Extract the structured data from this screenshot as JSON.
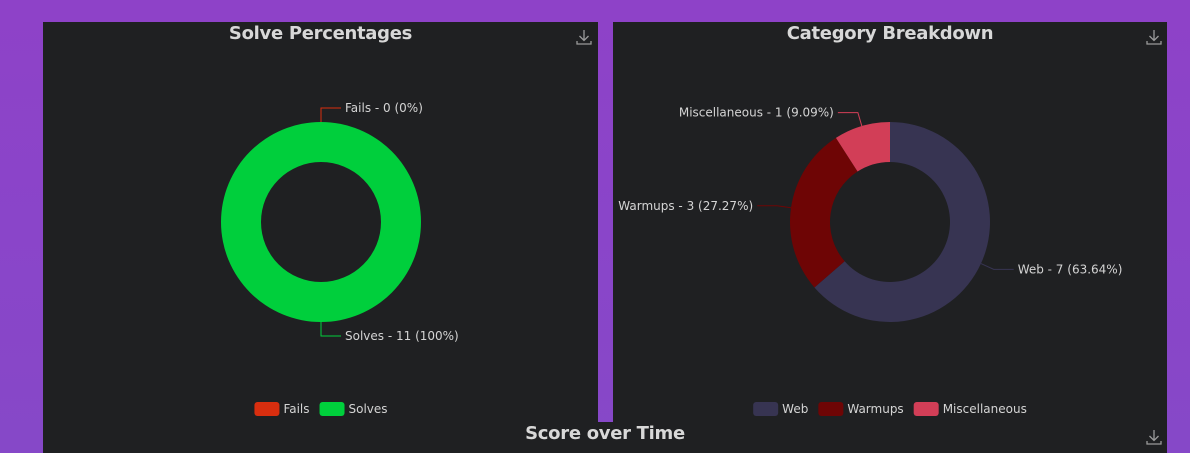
{
  "chart_data": [
    {
      "type": "pie",
      "variant": "donut",
      "title": "Solve Percentages",
      "slices": [
        {
          "name": "Fails",
          "value": 0,
          "percent": "0%",
          "label": "Fails - 0 (0%)",
          "color": "#d82e0f"
        },
        {
          "name": "Solves",
          "value": 11,
          "percent": "100%",
          "label": "Solves - 11 (100%)",
          "color": "#00cf3c"
        }
      ],
      "legend": [
        "Fails",
        "Solves"
      ],
      "legend_position": "bottom"
    },
    {
      "type": "pie",
      "variant": "donut",
      "title": "Category Breakdown",
      "slices": [
        {
          "name": "Web",
          "value": 7,
          "percent": "63.64%",
          "label": "Web - 7 (63.64%)",
          "color": "#373452"
        },
        {
          "name": "Warmups",
          "value": 3,
          "percent": "27.27%",
          "label": "Warmups - 3 (27.27%)",
          "color": "#6e0505"
        },
        {
          "name": "Miscellaneous",
          "value": 1,
          "percent": "9.09%",
          "label": "Miscellaneous - 1 (9.09%)",
          "color": "#d23e57"
        }
      ],
      "legend": [
        "Web",
        "Warmups",
        "Miscellaneous"
      ],
      "legend_position": "bottom"
    },
    {
      "type": "line",
      "title": "Score over Time"
    }
  ],
  "icons": {
    "download": "download-icon"
  }
}
